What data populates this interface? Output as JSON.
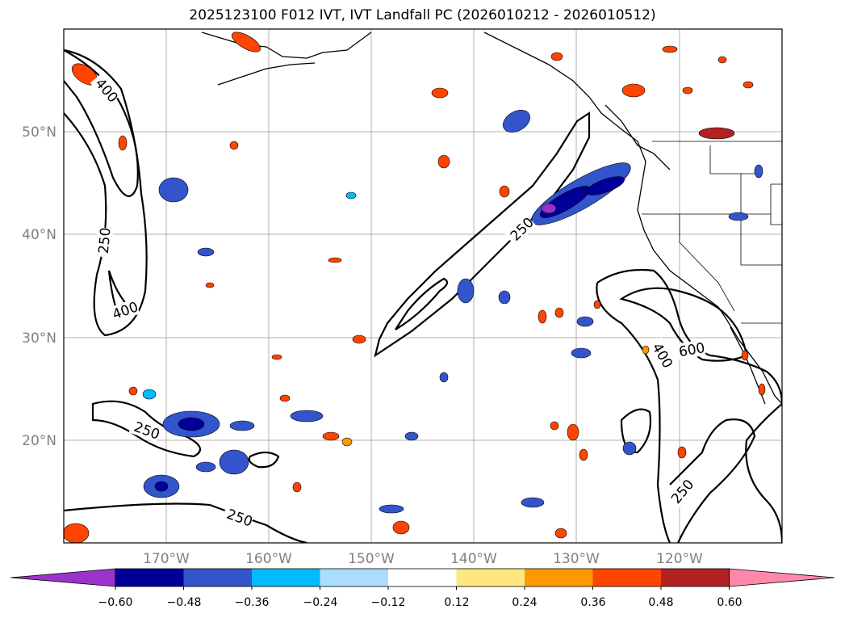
{
  "title": "2025123100 F012 IVT, IVT Landfall PC (2026010212 - 2026010512)",
  "lat_labels": [
    "50°N",
    "40°N",
    "30°N",
    "20°N"
  ],
  "lon_labels": [
    "170°W",
    "160°W",
    "150°W",
    "140°W",
    "130°W",
    "120°W"
  ],
  "contour_labels": [
    "400",
    "250",
    "400",
    "250",
    "250",
    "250",
    "400",
    "600",
    "250"
  ],
  "colorbar": {
    "tick_labels": [
      "−0.60",
      "−0.48",
      "−0.36",
      "−0.24",
      "−0.12",
      "0.12",
      "0.24",
      "0.36",
      "0.48",
      "0.60"
    ],
    "colors": [
      "#9933cc",
      "#000099",
      "#3355cc",
      "#00bbff",
      "#aaddff",
      "#ffffff",
      "#ffe680",
      "#ff9900",
      "#ff4400",
      "#b22222",
      "#ff88aa"
    ]
  }
}
